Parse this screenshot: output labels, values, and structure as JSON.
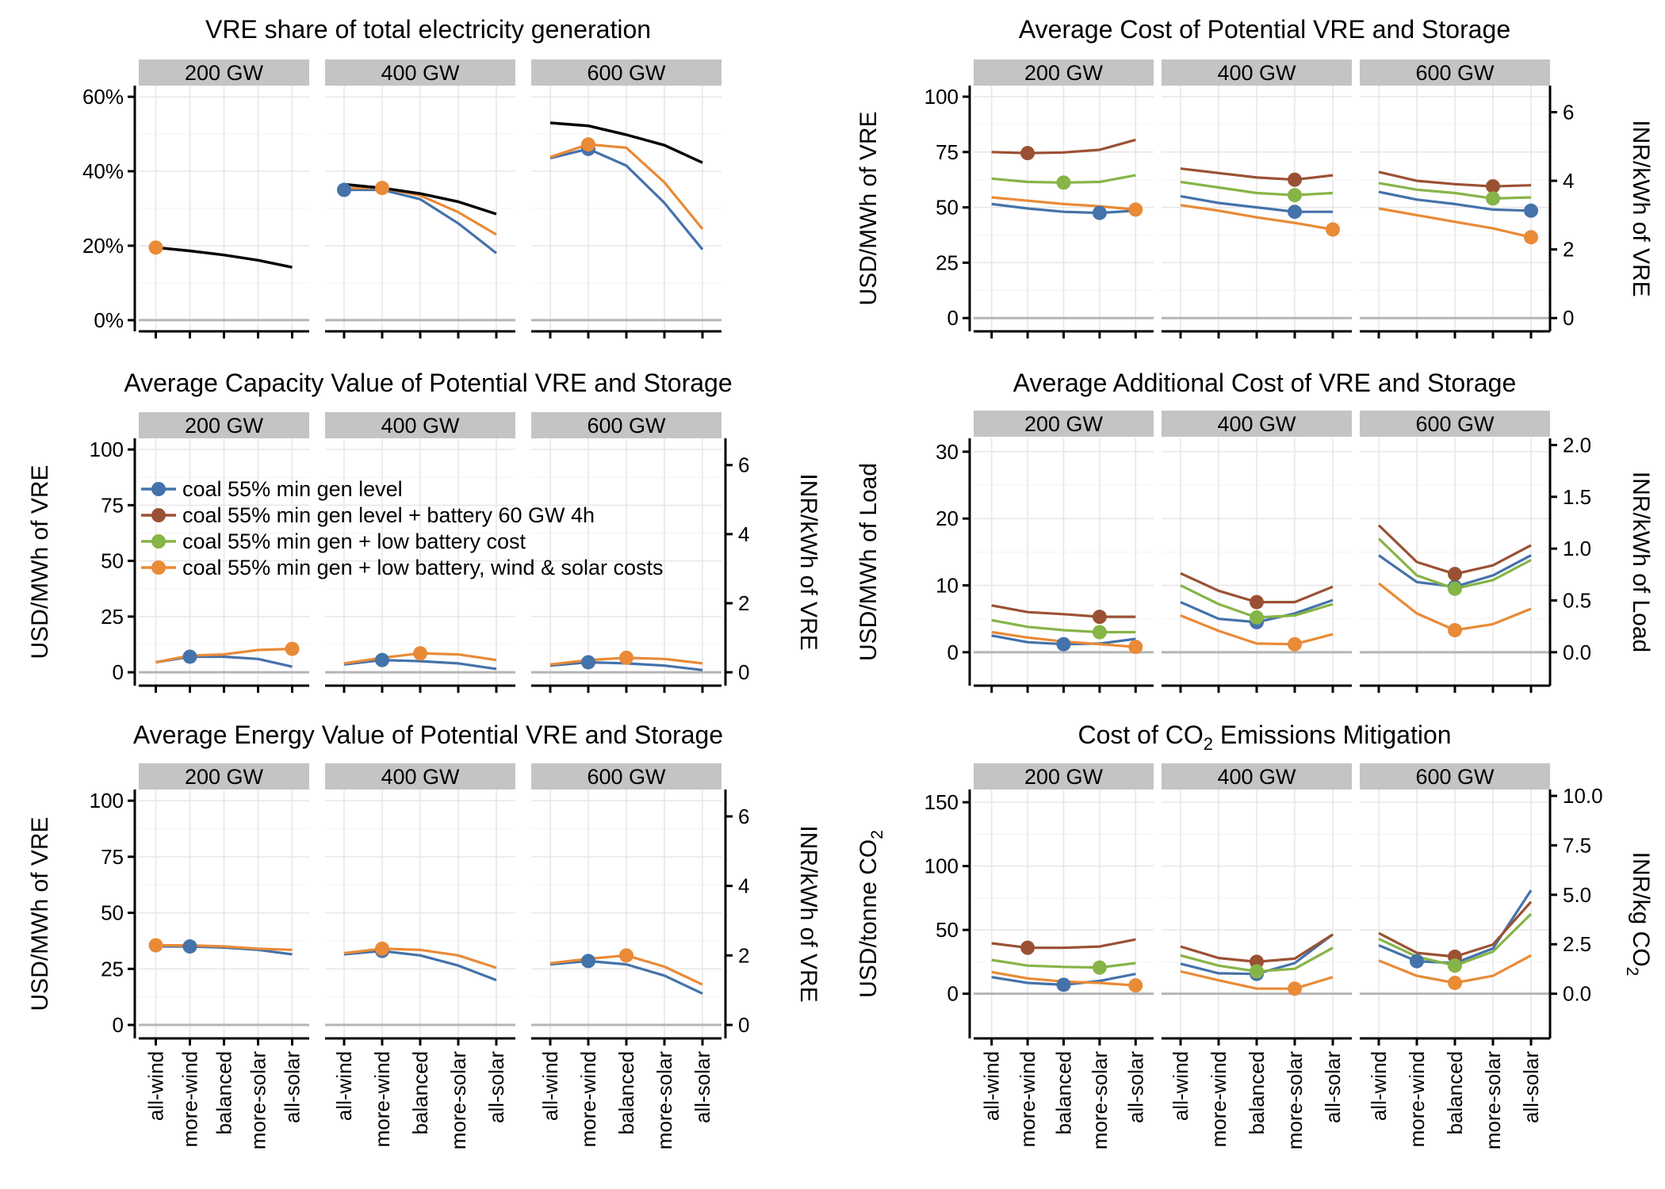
{
  "x_categories": [
    "all-wind",
    "more-wind",
    "balanced",
    "more-solar",
    "all-solar"
  ],
  "facets": [
    "200 GW",
    "400 GW",
    "600 GW"
  ],
  "colors": {
    "coal": "#4472aa",
    "battery": "#9a5133",
    "low_battery": "#86b447",
    "low_all": "#e98a37",
    "vre": "#000000"
  },
  "legend": [
    {
      "key": "coal",
      "label": "coal 55% min gen level"
    },
    {
      "key": "battery",
      "label": "coal 55% min gen level + battery 60 GW 4h"
    },
    {
      "key": "low_battery",
      "label": "coal 55% min gen + low battery cost"
    },
    {
      "key": "low_all",
      "label": "coal 55% min gen + low battery, wind & solar costs"
    }
  ],
  "chart_data": [
    {
      "id": "vre-share",
      "type": "line",
      "title": "VRE share of total electricity generation",
      "ylabel": "",
      "ylabel_right": "",
      "ylim": [
        -3,
        63
      ],
      "yticks": [
        0,
        20,
        40,
        60
      ],
      "ytick_labels": [
        "0%",
        "20%",
        "40%",
        "60%"
      ],
      "facets": [
        {
          "label": "200 GW",
          "series": [
            {
              "key": "vre",
              "values": [
                19.5,
                18.6,
                17.5,
                16.1,
                14.2
              ],
              "highlight": null
            },
            {
              "key": "coal",
              "values": [
                19.5,
                null,
                null,
                null,
                null
              ],
              "highlight": null
            },
            {
              "key": "low_all",
              "values": [
                19.5,
                null,
                null,
                null,
                null
              ],
              "highlight": 0
            }
          ]
        },
        {
          "label": "400 GW",
          "series": [
            {
              "key": "vre",
              "values": [
                36.5,
                35.5,
                34,
                31.8,
                28.5
              ],
              "highlight": null
            },
            {
              "key": "coal",
              "values": [
                35,
                35,
                32.5,
                26,
                18
              ],
              "highlight": 0
            },
            {
              "key": "low_all",
              "values": [
                35.5,
                35.5,
                33.5,
                29,
                23
              ],
              "highlight": 1
            }
          ]
        },
        {
          "label": "600 GW",
          "series": [
            {
              "key": "vre",
              "values": [
                53,
                52.2,
                49.8,
                47,
                42.3
              ],
              "highlight": null
            },
            {
              "key": "coal",
              "values": [
                43.5,
                46,
                41.5,
                31.5,
                19
              ],
              "highlight": 1
            },
            {
              "key": "low_all",
              "values": [
                43.8,
                47.2,
                46.3,
                37,
                24.5
              ],
              "highlight": 1
            }
          ]
        }
      ]
    },
    {
      "id": "avg-cost",
      "type": "line",
      "title": "Average Cost of Potential VRE and Storage",
      "ylabel": "USD/MWh of VRE",
      "ylabel_right": "INR/kWh of VRE",
      "ylim": [
        -6,
        105
      ],
      "yticks": [
        0,
        25,
        50,
        75,
        100
      ],
      "ytick_labels": [
        "0",
        "25",
        "50",
        "75",
        "100"
      ],
      "right_ticks": [
        0,
        2,
        4,
        6
      ],
      "right_factor": 15.5,
      "facets": [
        {
          "label": "200 GW",
          "series": [
            {
              "key": "coal",
              "values": [
                51.5,
                49.5,
                48,
                47.5,
                48.5
              ],
              "highlight": 3
            },
            {
              "key": "battery",
              "values": [
                75,
                74.5,
                74.8,
                76,
                80.5
              ],
              "highlight": 1
            },
            {
              "key": "low_battery",
              "values": [
                63,
                61.5,
                61.2,
                61.5,
                64.5
              ],
              "highlight": 2
            },
            {
              "key": "low_all",
              "values": [
                54.5,
                53,
                51.5,
                50.5,
                49
              ],
              "highlight": 4
            }
          ]
        },
        {
          "label": "400 GW",
          "series": [
            {
              "key": "coal",
              "values": [
                55,
                52,
                50,
                48,
                48
              ],
              "highlight": 3
            },
            {
              "key": "battery",
              "values": [
                67.5,
                65.5,
                63.5,
                62.5,
                64.5
              ],
              "highlight": 3
            },
            {
              "key": "low_battery",
              "values": [
                61.5,
                59,
                56.5,
                55.5,
                56.5
              ],
              "highlight": 3
            },
            {
              "key": "low_all",
              "values": [
                51,
                48.5,
                45.5,
                43,
                40
              ],
              "highlight": 4
            }
          ]
        },
        {
          "label": "600 GW",
          "series": [
            {
              "key": "coal",
              "values": [
                57,
                53.5,
                51.5,
                49,
                48.5
              ],
              "highlight": 4
            },
            {
              "key": "battery",
              "values": [
                66,
                62,
                60.5,
                59.5,
                60
              ],
              "highlight": 3
            },
            {
              "key": "low_battery",
              "values": [
                61,
                58,
                56.5,
                54,
                54.5
              ],
              "highlight": 3
            },
            {
              "key": "low_all",
              "values": [
                49.5,
                46.5,
                43.5,
                40.5,
                36.5
              ],
              "highlight": 4
            }
          ]
        }
      ]
    },
    {
      "id": "capacity-value",
      "type": "line",
      "title": "Average Capacity Value of Potential VRE and Storage",
      "ylabel": "USD/MWh of VRE",
      "ylabel_right": "INR/kWh of VRE",
      "ylim": [
        -6,
        105
      ],
      "yticks": [
        0,
        25,
        50,
        75,
        100
      ],
      "ytick_labels": [
        "0",
        "25",
        "50",
        "75",
        "100"
      ],
      "right_ticks": [
        0,
        2,
        4,
        6
      ],
      "right_factor": 15.5,
      "facets": [
        {
          "label": "200 GW",
          "series": [
            {
              "key": "coal",
              "values": [
                4.5,
                7,
                7,
                6,
                2.5
              ],
              "highlight": 1
            },
            {
              "key": "low_all",
              "values": [
                4.5,
                7.5,
                8,
                10,
                10.5
              ],
              "highlight": 4
            }
          ]
        },
        {
          "label": "400 GW",
          "series": [
            {
              "key": "coal",
              "values": [
                3.5,
                5.5,
                5,
                4,
                1.5
              ],
              "highlight": 1
            },
            {
              "key": "low_all",
              "values": [
                4,
                6.5,
                8.5,
                8,
                5.5
              ],
              "highlight": 2
            }
          ]
        },
        {
          "label": "600 GW",
          "series": [
            {
              "key": "coal",
              "values": [
                3,
                4.5,
                4,
                3,
                1
              ],
              "highlight": 1
            },
            {
              "key": "low_all",
              "values": [
                3.5,
                5.5,
                6.5,
                6,
                4
              ],
              "highlight": 2
            }
          ]
        }
      ]
    },
    {
      "id": "additional-cost",
      "type": "line",
      "title": "Average Additional Cost of VRE and Storage",
      "ylabel": "USD/MWh of Load",
      "ylabel_right": "INR/kWh of Load",
      "ylim": [
        -5,
        32
      ],
      "yticks": [
        0,
        10,
        20,
        30
      ],
      "ytick_labels": [
        "0",
        "10",
        "20",
        "30"
      ],
      "right_ticks": [
        0,
        0.5,
        1,
        1.5,
        2
      ],
      "right_tick_labels": [
        "0.0",
        "0.5",
        "1.0",
        "1.5",
        "2.0"
      ],
      "right_factor": 15.5,
      "facets": [
        {
          "label": "200 GW",
          "series": [
            {
              "key": "coal",
              "values": [
                2.5,
                1.5,
                1.2,
                1.3,
                2
              ],
              "highlight": 2
            },
            {
              "key": "battery",
              "values": [
                7,
                6,
                5.7,
                5.3,
                5.3
              ],
              "highlight": 3
            },
            {
              "key": "low_battery",
              "values": [
                4.8,
                3.8,
                3.3,
                3,
                3
              ],
              "highlight": 3
            },
            {
              "key": "low_all",
              "values": [
                3,
                2.2,
                1.6,
                1.2,
                0.8
              ],
              "highlight": 4
            }
          ]
        },
        {
          "label": "400 GW",
          "series": [
            {
              "key": "coal",
              "values": [
                7.5,
                5,
                4.5,
                5.8,
                7.8
              ],
              "highlight": 2
            },
            {
              "key": "battery",
              "values": [
                11.8,
                9.2,
                7.5,
                7.5,
                9.8
              ],
              "highlight": 2
            },
            {
              "key": "low_battery",
              "values": [
                10,
                7.2,
                5.2,
                5.5,
                7.2
              ],
              "highlight": 2
            },
            {
              "key": "low_all",
              "values": [
                5.5,
                3.2,
                1.3,
                1.2,
                2.7
              ],
              "highlight": 3
            }
          ]
        },
        {
          "label": "600 GW",
          "series": [
            {
              "key": "coal",
              "values": [
                14.5,
                10.5,
                9.8,
                11.5,
                14.5
              ],
              "highlight": 2
            },
            {
              "key": "battery",
              "values": [
                19,
                13.5,
                11.7,
                13,
                16
              ],
              "highlight": 2
            },
            {
              "key": "low_battery",
              "values": [
                17,
                11.5,
                9.5,
                10.8,
                13.8
              ],
              "highlight": 2
            },
            {
              "key": "low_all",
              "values": [
                10.3,
                5.8,
                3.3,
                4.2,
                6.5
              ],
              "highlight": 2
            }
          ]
        }
      ]
    },
    {
      "id": "energy-value",
      "type": "line",
      "title": "Average Energy Value of Potential VRE and Storage",
      "ylabel": "USD/MWh of VRE",
      "ylabel_right": "INR/kWh of VRE",
      "ylim": [
        -6,
        105
      ],
      "yticks": [
        0,
        25,
        50,
        75,
        100
      ],
      "ytick_labels": [
        "0",
        "25",
        "50",
        "75",
        "100"
      ],
      "right_ticks": [
        0,
        2,
        4,
        6
      ],
      "right_factor": 15.5,
      "facets": [
        {
          "label": "200 GW",
          "series": [
            {
              "key": "coal",
              "values": [
                35,
                35,
                34.5,
                33.5,
                31.5
              ],
              "highlight": 1
            },
            {
              "key": "low_all",
              "values": [
                35.5,
                35.5,
                35,
                34,
                33.5
              ],
              "highlight": 0
            }
          ]
        },
        {
          "label": "400 GW",
          "series": [
            {
              "key": "coal",
              "values": [
                31.5,
                33,
                31,
                26.5,
                20
              ],
              "highlight": 1
            },
            {
              "key": "low_all",
              "values": [
                32,
                34,
                33.5,
                31,
                25.5
              ],
              "highlight": 1
            }
          ]
        },
        {
          "label": "600 GW",
          "series": [
            {
              "key": "coal",
              "values": [
                27,
                28.5,
                27,
                22,
                14
              ],
              "highlight": 1
            },
            {
              "key": "low_all",
              "values": [
                27.5,
                29.5,
                31,
                26,
                18
              ],
              "highlight": 2
            }
          ]
        }
      ]
    },
    {
      "id": "co2-cost",
      "type": "line",
      "title": "Cost of CO2 Emissions Mitigation",
      "title_base": "Cost of CO",
      "title_sub": "2",
      "title_tail": " Emissions Mitigation",
      "ylabel": "USD/tonne CO2",
      "ylabel_base": "USD/tonne CO",
      "ylabel_sub": "2",
      "ylabel_right": "INR/kg CO2",
      "ylabel_right_base": "INR/kg CO",
      "ylabel_right_sub": "2",
      "ylim": [
        -35,
        160
      ],
      "yticks": [
        0,
        50,
        100,
        150
      ],
      "ytick_labels": [
        "0",
        "50",
        "100",
        "150"
      ],
      "right_ticks": [
        0,
        2.5,
        5,
        7.5,
        10
      ],
      "right_tick_labels": [
        "0.0",
        "2.5",
        "5.0",
        "7.5",
        "10.0"
      ],
      "right_factor": 15.5,
      "facets": [
        {
          "label": "200 GW",
          "series": [
            {
              "key": "coal",
              "values": [
                13,
                8.5,
                7,
                10,
                15.5
              ],
              "highlight": 2
            },
            {
              "key": "battery",
              "values": [
                39.5,
                36,
                36,
                37,
                42.5
              ],
              "highlight": 1
            },
            {
              "key": "low_battery",
              "values": [
                26.5,
                22,
                21,
                20.5,
                24
              ],
              "highlight": 3
            },
            {
              "key": "low_all",
              "values": [
                17,
                12,
                9.5,
                8.5,
                6.5
              ],
              "highlight": 4
            }
          ]
        },
        {
          "label": "400 GW",
          "series": [
            {
              "key": "coal",
              "values": [
                23.5,
                16,
                15.5,
                24,
                46.5
              ],
              "highlight": 2
            },
            {
              "key": "battery",
              "values": [
                37,
                28,
                25,
                27.5,
                46.5
              ],
              "highlight": 2
            },
            {
              "key": "low_battery",
              "values": [
                30,
                22,
                17.5,
                19.5,
                36
              ],
              "highlight": 2
            },
            {
              "key": "low_all",
              "values": [
                17.5,
                10.5,
                4,
                4,
                13
              ],
              "highlight": 3
            }
          ]
        },
        {
          "label": "600 GW",
          "series": [
            {
              "key": "coal",
              "values": [
                38,
                25.5,
                24,
                35.5,
                81
              ],
              "highlight": 1
            },
            {
              "key": "battery",
              "values": [
                47.5,
                32,
                29,
                38.5,
                72
              ],
              "highlight": 2
            },
            {
              "key": "low_battery",
              "values": [
                43,
                29,
                22,
                33,
                62.5
              ],
              "highlight": 2
            },
            {
              "key": "low_all",
              "values": [
                26,
                14,
                8.5,
                14,
                30
              ],
              "highlight": 2
            }
          ]
        }
      ]
    }
  ]
}
